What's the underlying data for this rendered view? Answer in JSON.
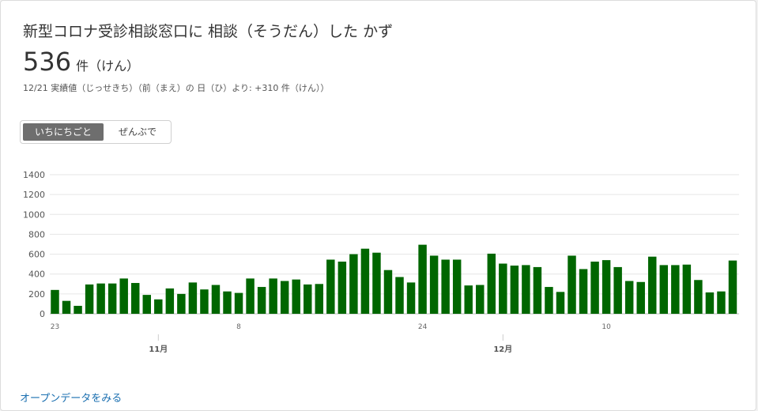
{
  "header": {
    "title": "新型コロナ受診相談窓口に 相談（そうだん）した かず",
    "value": "536",
    "unit": "件（けん）",
    "note": "12/21 実績値（じっせきち）（前（まえ）の 日（ひ）より: +310 件（けん））"
  },
  "toggle": {
    "daily_label": "いちにちごと",
    "total_label": "ぜんぶで",
    "selected": "daily"
  },
  "footer": {
    "link_label": "オープンデータをみる"
  },
  "colors": {
    "bar": "#006600",
    "grid": "#e6e6e6",
    "axis_text": "#666666",
    "active_toggle": "#6e6e6e"
  },
  "chart_data": {
    "type": "bar",
    "ylim": [
      0,
      1400
    ],
    "yticks": [
      0,
      200,
      400,
      600,
      800,
      1000,
      1200,
      1400
    ],
    "grid": true,
    "x": [
      "10/23",
      "10/24",
      "10/25",
      "10/26",
      "10/27",
      "10/28",
      "10/29",
      "10/30",
      "10/31",
      "11/1",
      "11/2",
      "11/3",
      "11/4",
      "11/5",
      "11/6",
      "11/7",
      "11/8",
      "11/9",
      "11/10",
      "11/11",
      "11/12",
      "11/13",
      "11/14",
      "11/15",
      "11/16",
      "11/17",
      "11/18",
      "11/19",
      "11/20",
      "11/21",
      "11/22",
      "11/23",
      "11/24",
      "11/25",
      "11/26",
      "11/27",
      "11/28",
      "11/29",
      "11/30",
      "12/1",
      "12/2",
      "12/3",
      "12/4",
      "12/5",
      "12/6",
      "12/7",
      "12/8",
      "12/9",
      "12/10",
      "12/11",
      "12/12",
      "12/13",
      "12/14",
      "12/15",
      "12/16",
      "12/17",
      "12/18",
      "12/19",
      "12/20",
      "12/21"
    ],
    "values": [
      240,
      130,
      80,
      295,
      305,
      305,
      355,
      310,
      190,
      145,
      255,
      200,
      315,
      245,
      290,
      225,
      210,
      355,
      270,
      355,
      330,
      345,
      295,
      300,
      545,
      525,
      600,
      655,
      615,
      440,
      370,
      315,
      695,
      585,
      545,
      545,
      285,
      290,
      605,
      505,
      485,
      490,
      470,
      270,
      220,
      585,
      450,
      525,
      540,
      470,
      330,
      320,
      575,
      490,
      490,
      495,
      340,
      215,
      225,
      536
    ],
    "xtick_labels": [
      {
        "index": 0,
        "label": "23"
      },
      {
        "index": 16,
        "label": "8"
      },
      {
        "index": 32,
        "label": "24"
      },
      {
        "index": 48,
        "label": "10"
      }
    ],
    "month_labels": [
      {
        "index": 9,
        "label": "11月"
      },
      {
        "index": 39,
        "label": "12月"
      }
    ]
  }
}
